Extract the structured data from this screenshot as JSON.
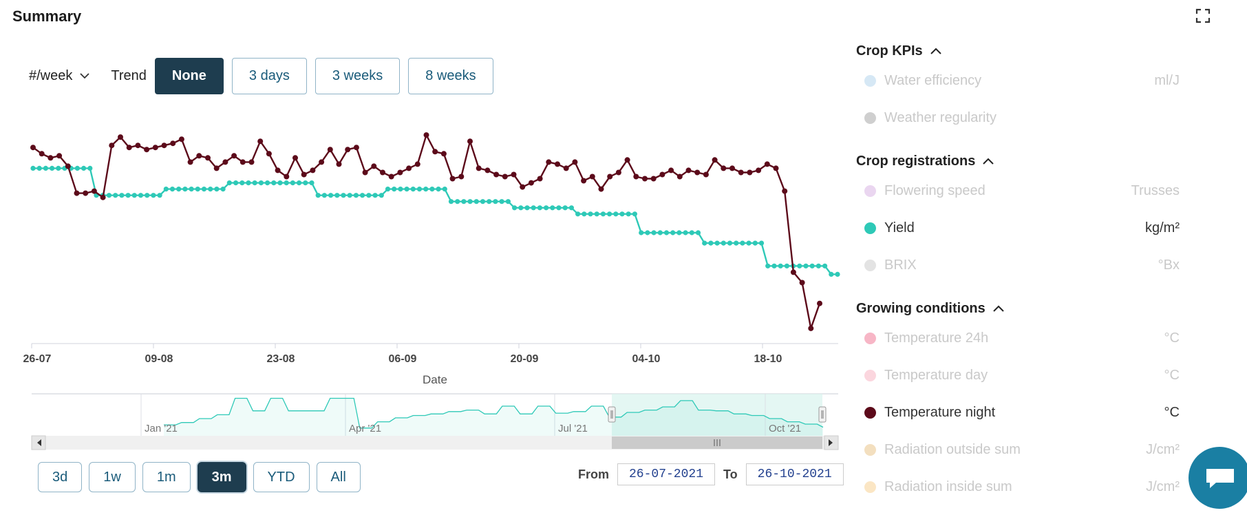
{
  "title": "Summary",
  "toolbar": {
    "unit_select": "#/week",
    "trend_label": "Trend",
    "trend_options": [
      "None",
      "3 days",
      "3 weeks",
      "8 weeks"
    ],
    "trend_selected": "None"
  },
  "chart_data": {
    "type": "line",
    "xlabel": "Date",
    "x_ticks": [
      "26-07",
      "09-08",
      "23-08",
      "06-09",
      "20-09",
      "04-10",
      "18-10"
    ],
    "x_range": [
      "26-07-2021",
      "26-10-2021"
    ],
    "y_axis_visible": false,
    "grid": false,
    "series": [
      {
        "name": "Temperature night",
        "color": "#5c0a1a",
        "unit": "°C",
        "values": [
          17.3,
          17.0,
          16.8,
          16.9,
          16.4,
          15.1,
          15.1,
          15.2,
          14.9,
          17.4,
          17.8,
          17.3,
          17.4,
          17.2,
          17.3,
          17.4,
          17.5,
          17.7,
          16.6,
          16.9,
          16.8,
          16.3,
          16.6,
          16.9,
          16.6,
          16.6,
          17.6,
          17.0,
          16.2,
          15.9,
          16.8,
          16.0,
          16.2,
          16.6,
          17.2,
          16.5,
          17.2,
          17.3,
          16.1,
          16.4,
          16.1,
          15.9,
          16.1,
          16.3,
          16.5,
          17.9,
          17.1,
          17.0,
          15.8,
          15.9,
          17.6,
          16.3,
          16.2,
          16.0,
          15.9,
          16.0,
          15.4,
          15.6,
          15.8,
          16.6,
          16.5,
          16.3,
          16.6,
          15.7,
          15.9,
          15.3,
          15.9,
          16.1,
          16.7,
          15.9,
          15.8,
          15.8,
          16.0,
          16.2,
          15.9,
          16.2,
          16.1,
          16.0,
          16.7,
          16.3,
          16.3,
          16.1,
          16.1,
          16.2,
          16.5,
          16.3,
          15.2,
          11.3,
          10.8,
          8.6,
          9.8
        ]
      },
      {
        "name": "Yield",
        "color": "#2ec9b7",
        "unit": "kg/m²",
        "values": [
          16.3,
          16.3,
          16.3,
          16.3,
          16.3,
          16.3,
          16.3,
          16.3,
          16.3,
          16.3,
          15.0,
          15.0,
          15.0,
          15.0,
          15.0,
          15.0,
          15.0,
          15.0,
          15.0,
          15.0,
          15.0,
          15.3,
          15.3,
          15.3,
          15.3,
          15.3,
          15.3,
          15.3,
          15.3,
          15.3,
          15.3,
          15.6,
          15.6,
          15.6,
          15.6,
          15.6,
          15.6,
          15.6,
          15.6,
          15.6,
          15.6,
          15.6,
          15.6,
          15.6,
          15.6,
          15.0,
          15.0,
          15.0,
          15.0,
          15.0,
          15.0,
          15.0,
          15.0,
          15.0,
          15.0,
          15.0,
          15.3,
          15.3,
          15.3,
          15.3,
          15.3,
          15.3,
          15.3,
          15.3,
          15.3,
          15.3,
          14.7,
          14.7,
          14.7,
          14.7,
          14.7,
          14.7,
          14.7,
          14.7,
          14.7,
          14.7,
          14.4,
          14.4,
          14.4,
          14.4,
          14.4,
          14.4,
          14.4,
          14.4,
          14.4,
          14.4,
          14.1,
          14.1,
          14.1,
          14.1,
          14.1,
          14.1,
          14.1,
          14.1,
          14.1,
          14.1,
          13.2,
          13.2,
          13.2,
          13.2,
          13.2,
          13.2,
          13.2,
          13.2,
          13.2,
          13.2,
          12.7,
          12.7,
          12.7,
          12.7,
          12.7,
          12.7,
          12.7,
          12.7,
          12.7,
          12.7,
          11.6,
          11.6,
          11.6,
          11.6,
          11.6,
          11.6,
          11.6,
          11.6,
          11.6,
          11.6,
          11.2,
          11.2
        ]
      }
    ],
    "navigator": {
      "labels": [
        "Jan '21",
        "Apr '21",
        "Jul '21",
        "Oct '21"
      ],
      "values": [
        10.2,
        10.2,
        10.2,
        10.5,
        10.5,
        10.5,
        11.0,
        11.0,
        11.0,
        11.5,
        11.5,
        11.5,
        13.6,
        13.6,
        13.6,
        12.0,
        12.0,
        12.0,
        13.6,
        13.6,
        13.6,
        12.0,
        12.0,
        12.0,
        12.0,
        12.0,
        12.0,
        12.0,
        13.6,
        13.6,
        13.6,
        13.6,
        13.6,
        9.8,
        9.8,
        9.8,
        10.6,
        10.6,
        10.6,
        11.1,
        11.1,
        11.1,
        11.4,
        11.4,
        11.4,
        11.6,
        11.6,
        11.6,
        11.9,
        11.9,
        11.9,
        12.1,
        12.1,
        12.1,
        11.6,
        11.6,
        11.6,
        12.6,
        12.6,
        12.6,
        11.6,
        11.6,
        11.6,
        12.6,
        12.6,
        12.6,
        11.7,
        11.7,
        11.7,
        11.9,
        11.9,
        11.9,
        12.6,
        12.6,
        12.6,
        11.2,
        11.2,
        11.2,
        11.8,
        11.8,
        11.8,
        12.1,
        12.1,
        12.1,
        12.5,
        12.5,
        12.5,
        13.3,
        13.3,
        13.3,
        12.1,
        12.1,
        12.1,
        12.0,
        12.0,
        12.0,
        11.6,
        11.6,
        11.6,
        11.4,
        11.4,
        11.4,
        11.0,
        11.0,
        11.0,
        10.6,
        10.6,
        10.6,
        10.3,
        10.3,
        10.3,
        9.9
      ]
    }
  },
  "range_buttons": [
    "3d",
    "1w",
    "1m",
    "3m",
    "YTD",
    "All"
  ],
  "range_selected": "3m",
  "date_range": {
    "from_label": "From",
    "from_value": "26-07-2021",
    "to_label": "To",
    "to_value": "26-10-2021"
  },
  "panel": {
    "sections": [
      {
        "title": "Crop KPIs",
        "items": [
          {
            "name": "Water efficiency",
            "unit": "ml/J",
            "color": "#d6e8f5",
            "active": false
          },
          {
            "name": "Weather regularity",
            "unit": "",
            "color": "#cfcfcf",
            "active": false
          }
        ]
      },
      {
        "title": "Crop registrations",
        "items": [
          {
            "name": "Flowering speed",
            "unit": "Trusses",
            "color": "#ead6f0",
            "active": false
          },
          {
            "name": "Yield",
            "unit": "kg/m²",
            "color": "#2ec9b7",
            "active": true
          },
          {
            "name": "BRIX",
            "unit": "°Bx",
            "color": "#e3e3e3",
            "active": false
          }
        ]
      },
      {
        "title": "Growing conditions",
        "items": [
          {
            "name": "Temperature 24h",
            "unit": "°C",
            "color": "#f7b6c6",
            "active": false
          },
          {
            "name": "Temperature day",
            "unit": "°C",
            "color": "#fbd6de",
            "active": false
          },
          {
            "name": "Temperature night",
            "unit": "°C",
            "color": "#5c0a1a",
            "active": true
          },
          {
            "name": "Radiation outside sum",
            "unit": "J/cm²",
            "color": "#f3dfbf",
            "active": false
          },
          {
            "name": "Radiation inside sum",
            "unit": "J/cm²",
            "color": "#fbe6c4",
            "active": false
          }
        ]
      }
    ]
  }
}
